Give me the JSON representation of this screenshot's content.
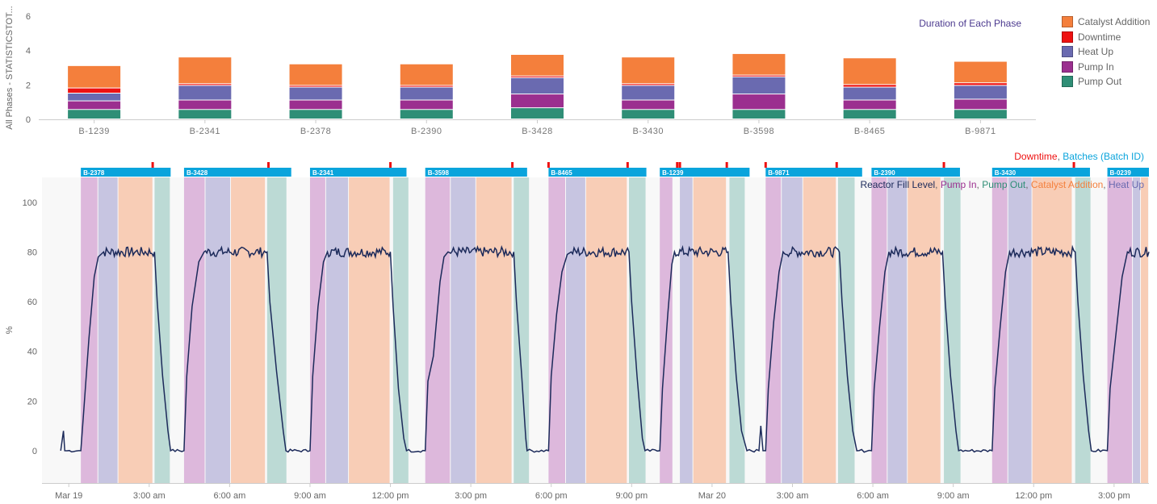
{
  "colors": {
    "catalyst": "#f47f3c",
    "downtime": "#ee1111",
    "heatup": "#6a6ab0",
    "pumpin": "#9b2f8f",
    "pumpout": "#2f8e76",
    "line": "#1c2a5a",
    "batch": "#0aa4dc",
    "bandPumpIn": "#ddb8dc",
    "bandHeatUp": "#c7c5e1",
    "bandCatalyst": "#f8cdb6",
    "bandPumpOut": "#bcdad5",
    "plotBg": "#f8f8f8"
  },
  "chart_data": [
    {
      "type": "bar",
      "stacked": true,
      "title": "Duration of Each Phase",
      "ylabel": "All Phases - STATISTICSTOT...",
      "ylim": [
        0,
        6
      ],
      "yticks": [
        0,
        2,
        4,
        6
      ],
      "categories": [
        "B-1239",
        "B-2341",
        "B-2378",
        "B-2390",
        "B-3428",
        "B-3430",
        "B-3598",
        "B-8465",
        "B-9871"
      ],
      "legend_position": "right",
      "series": [
        {
          "name": "Pump Out",
          "color": "#2f8e76",
          "values": [
            0.55,
            0.55,
            0.55,
            0.55,
            0.65,
            0.55,
            0.55,
            0.55,
            0.55
          ]
        },
        {
          "name": "Pump In",
          "color": "#9b2f8f",
          "values": [
            0.5,
            0.55,
            0.55,
            0.55,
            0.8,
            0.55,
            0.9,
            0.55,
            0.6
          ]
        },
        {
          "name": "Heat Up",
          "color": "#6a6ab0",
          "values": [
            0.45,
            0.85,
            0.75,
            0.75,
            0.95,
            0.85,
            1.0,
            0.75,
            0.8
          ]
        },
        {
          "name": "Downtime",
          "color": "#ee1111",
          "values": [
            0.3,
            0.1,
            0.1,
            0.1,
            0.1,
            0.1,
            0.1,
            0.15,
            0.15
          ]
        },
        {
          "name": "Catalyst Addition",
          "color": "#f47f3c",
          "values": [
            1.3,
            1.55,
            1.25,
            1.25,
            1.25,
            1.55,
            1.25,
            1.55,
            1.25
          ]
        }
      ],
      "legend": [
        "Catalyst Addition",
        "Downtime",
        "Heat Up",
        "Pump In",
        "Pump Out"
      ]
    },
    {
      "type": "line",
      "ylabel": "%",
      "ylim": [
        -13,
        110
      ],
      "yticks": [
        0,
        20,
        40,
        60,
        80,
        100
      ],
      "x_unit": "hours from Mar 19 00:00",
      "xlim": [
        -1,
        40.3
      ],
      "xticks": [
        {
          "x": 0,
          "label": "Mar 19"
        },
        {
          "x": 3,
          "label": "3:00 am"
        },
        {
          "x": 6,
          "label": "6:00 am"
        },
        {
          "x": 9,
          "label": "9:00 am"
        },
        {
          "x": 12,
          "label": "12:00 pm"
        },
        {
          "x": 15,
          "label": "3:00 pm"
        },
        {
          "x": 18,
          "label": "6:00 pm"
        },
        {
          "x": 21,
          "label": "9:00 pm"
        },
        {
          "x": 24,
          "label": "Mar 20"
        },
        {
          "x": 27,
          "label": "3:00 am"
        },
        {
          "x": 30,
          "label": "6:00 am"
        },
        {
          "x": 33,
          "label": "9:00 am"
        },
        {
          "x": 36,
          "label": "12:00 pm"
        },
        {
          "x": 39,
          "label": "3:00 pm"
        }
      ],
      "legend_batches": {
        "downtime": "Downtime",
        "sep": ", ",
        "batches": "Batches (Batch ID)"
      },
      "legend_series": [
        {
          "text": "Reactor Fill Level",
          "color": "#1c2a5a"
        },
        {
          "text": ", ",
          "color": "#666666"
        },
        {
          "text": "Pump In",
          "color": "#9b2f8f"
        },
        {
          "text": ", ",
          "color": "#666666"
        },
        {
          "text": "Pump Out",
          "color": "#2f8e76"
        },
        {
          "text": ", ",
          "color": "#666666"
        },
        {
          "text": "Catalyst Addition",
          "color": "#f47f3c"
        },
        {
          "text": ", ",
          "color": "#666666"
        },
        {
          "text": "Heat Up",
          "color": "#6a6ab0"
        }
      ],
      "batches": [
        {
          "id": "B-2378",
          "start": 0.45,
          "end": 3.8,
          "pumpin": [
            0.45,
            1.1
          ],
          "heatup": [
            1.1,
            1.85
          ],
          "catalyst": [
            1.85,
            3.15
          ],
          "pumpout": [
            3.2,
            3.8
          ],
          "downtime": [
            3.13
          ]
        },
        {
          "id": "B-3428",
          "start": 4.3,
          "end": 8.3,
          "pumpin": [
            4.3,
            5.1
          ],
          "heatup": [
            5.1,
            6.05
          ],
          "catalyst": [
            6.05,
            7.35
          ],
          "pumpout": [
            7.4,
            8.15
          ],
          "downtime": [
            7.45
          ]
        },
        {
          "id": "B-2341",
          "start": 9.0,
          "end": 12.6,
          "pumpin": [
            9.0,
            9.6
          ],
          "heatup": [
            9.6,
            10.45
          ],
          "catalyst": [
            10.45,
            12.0
          ],
          "pumpout": [
            12.1,
            12.7
          ],
          "downtime": [
            12.0
          ]
        },
        {
          "id": "B-3598",
          "start": 13.3,
          "end": 17.1,
          "pumpin": [
            13.3,
            14.25
          ],
          "heatup": [
            14.25,
            15.2
          ],
          "catalyst": [
            15.2,
            16.55
          ],
          "pumpout": [
            16.6,
            17.2
          ],
          "downtime": [
            16.55
          ]
        },
        {
          "id": "B-8465",
          "start": 17.9,
          "end": 21.55,
          "pumpin": [
            17.9,
            18.55
          ],
          "heatup": [
            18.55,
            19.3
          ],
          "catalyst": [
            19.3,
            20.85
          ],
          "pumpout": [
            20.9,
            21.55
          ],
          "downtime": [
            17.9,
            20.85
          ]
        },
        {
          "id": "B-1239",
          "start": 22.05,
          "end": 25.4,
          "pumpin": [
            22.05,
            22.55
          ],
          "heatup": [
            22.8,
            23.3
          ],
          "catalyst": [
            23.3,
            24.55
          ],
          "pumpout": [
            24.65,
            25.25
          ],
          "downtime": [
            22.7,
            22.8,
            24.55
          ]
        },
        {
          "id": "B-9871",
          "start": 26.0,
          "end": 29.6,
          "pumpin": [
            26.0,
            26.6
          ],
          "heatup": [
            26.6,
            27.4
          ],
          "catalyst": [
            27.4,
            28.65
          ],
          "pumpout": [
            28.7,
            29.35
          ],
          "downtime": [
            26.0,
            28.65
          ]
        },
        {
          "id": "B-2390",
          "start": 29.95,
          "end": 33.25,
          "pumpin": [
            29.95,
            30.55
          ],
          "heatup": [
            30.55,
            31.3
          ],
          "catalyst": [
            31.3,
            32.55
          ],
          "pumpout": [
            32.65,
            33.3
          ],
          "downtime": [
            32.65
          ]
        },
        {
          "id": "B-3430",
          "start": 34.45,
          "end": 38.1,
          "pumpin": [
            34.45,
            35.05
          ],
          "heatup": [
            35.05,
            35.95
          ],
          "catalyst": [
            35.95,
            37.45
          ],
          "pumpout": [
            37.55,
            38.15
          ],
          "downtime": [
            37.5
          ]
        },
        {
          "id": "B-0239",
          "start": 38.75,
          "end": 40.3,
          "pumpin": [
            38.75,
            39.7
          ],
          "heatup": [
            39.7,
            40.0
          ],
          "catalyst": [
            40.0,
            40.3
          ]
        }
      ],
      "series": [
        {
          "name": "Reactor Fill Level",
          "color": "#1c2a5a",
          "points": [
            [
              -0.3,
              0
            ],
            [
              -0.2,
              8
            ],
            [
              -0.15,
              0
            ],
            [
              0.45,
              0
            ],
            [
              0.55,
              15
            ],
            [
              0.75,
              45
            ],
            [
              0.95,
              70
            ],
            [
              1.1,
              78
            ],
            [
              1.3,
              80
            ],
            [
              3.2,
              80
            ],
            [
              3.3,
              60
            ],
            [
              3.5,
              30
            ],
            [
              3.7,
              8
            ],
            [
              3.8,
              0
            ],
            [
              4.3,
              0
            ],
            [
              4.4,
              30
            ],
            [
              4.6,
              58
            ],
            [
              4.85,
              76
            ],
            [
              5.05,
              80
            ],
            [
              7.4,
              80
            ],
            [
              7.5,
              60
            ],
            [
              7.75,
              32
            ],
            [
              8.0,
              8
            ],
            [
              8.1,
              0
            ],
            [
              9.0,
              0
            ],
            [
              9.1,
              30
            ],
            [
              9.3,
              58
            ],
            [
              9.5,
              76
            ],
            [
              9.65,
              80
            ],
            [
              12.0,
              80
            ],
            [
              12.1,
              58
            ],
            [
              12.3,
              25
            ],
            [
              12.5,
              5
            ],
            [
              12.6,
              0
            ],
            [
              13.3,
              0
            ],
            [
              13.4,
              28
            ],
            [
              13.6,
              38
            ],
            [
              13.85,
              68
            ],
            [
              14.0,
              78
            ],
            [
              14.15,
              80
            ],
            [
              16.6,
              80
            ],
            [
              16.7,
              60
            ],
            [
              16.9,
              30
            ],
            [
              17.05,
              5
            ],
            [
              17.1,
              0
            ],
            [
              17.9,
              0
            ],
            [
              18.0,
              30
            ],
            [
              18.2,
              55
            ],
            [
              18.4,
              72
            ],
            [
              18.6,
              79
            ],
            [
              18.75,
              80
            ],
            [
              20.9,
              80
            ],
            [
              21.0,
              60
            ],
            [
              21.2,
              30
            ],
            [
              21.4,
              5
            ],
            [
              21.5,
              0
            ],
            [
              22.05,
              0
            ],
            [
              22.15,
              25
            ],
            [
              22.35,
              55
            ],
            [
              22.5,
              75
            ],
            [
              22.6,
              80
            ],
            [
              24.6,
              80
            ],
            [
              24.7,
              60
            ],
            [
              24.9,
              30
            ],
            [
              25.1,
              8
            ],
            [
              25.3,
              0
            ],
            [
              25.75,
              0
            ],
            [
              25.82,
              10
            ],
            [
              25.9,
              0
            ],
            [
              26.0,
              0
            ],
            [
              26.1,
              25
            ],
            [
              26.3,
              52
            ],
            [
              26.5,
              72
            ],
            [
              26.65,
              80
            ],
            [
              28.75,
              80
            ],
            [
              28.85,
              60
            ],
            [
              29.05,
              30
            ],
            [
              29.25,
              8
            ],
            [
              29.4,
              0
            ],
            [
              29.95,
              0
            ],
            [
              30.05,
              25
            ],
            [
              30.25,
              50
            ],
            [
              30.45,
              72
            ],
            [
              30.6,
              80
            ],
            [
              32.6,
              80
            ],
            [
              32.7,
              60
            ],
            [
              32.9,
              30
            ],
            [
              33.1,
              8
            ],
            [
              33.2,
              0
            ],
            [
              34.45,
              0
            ],
            [
              34.55,
              25
            ],
            [
              34.75,
              50
            ],
            [
              34.95,
              72
            ],
            [
              35.1,
              80
            ],
            [
              37.55,
              80
            ],
            [
              37.65,
              60
            ],
            [
              37.85,
              30
            ],
            [
              38.05,
              8
            ],
            [
              38.15,
              0
            ],
            [
              38.75,
              0
            ],
            [
              38.85,
              25
            ],
            [
              39.05,
              45
            ],
            [
              39.3,
              70
            ],
            [
              39.5,
              80
            ],
            [
              40.3,
              80
            ]
          ]
        }
      ]
    }
  ]
}
